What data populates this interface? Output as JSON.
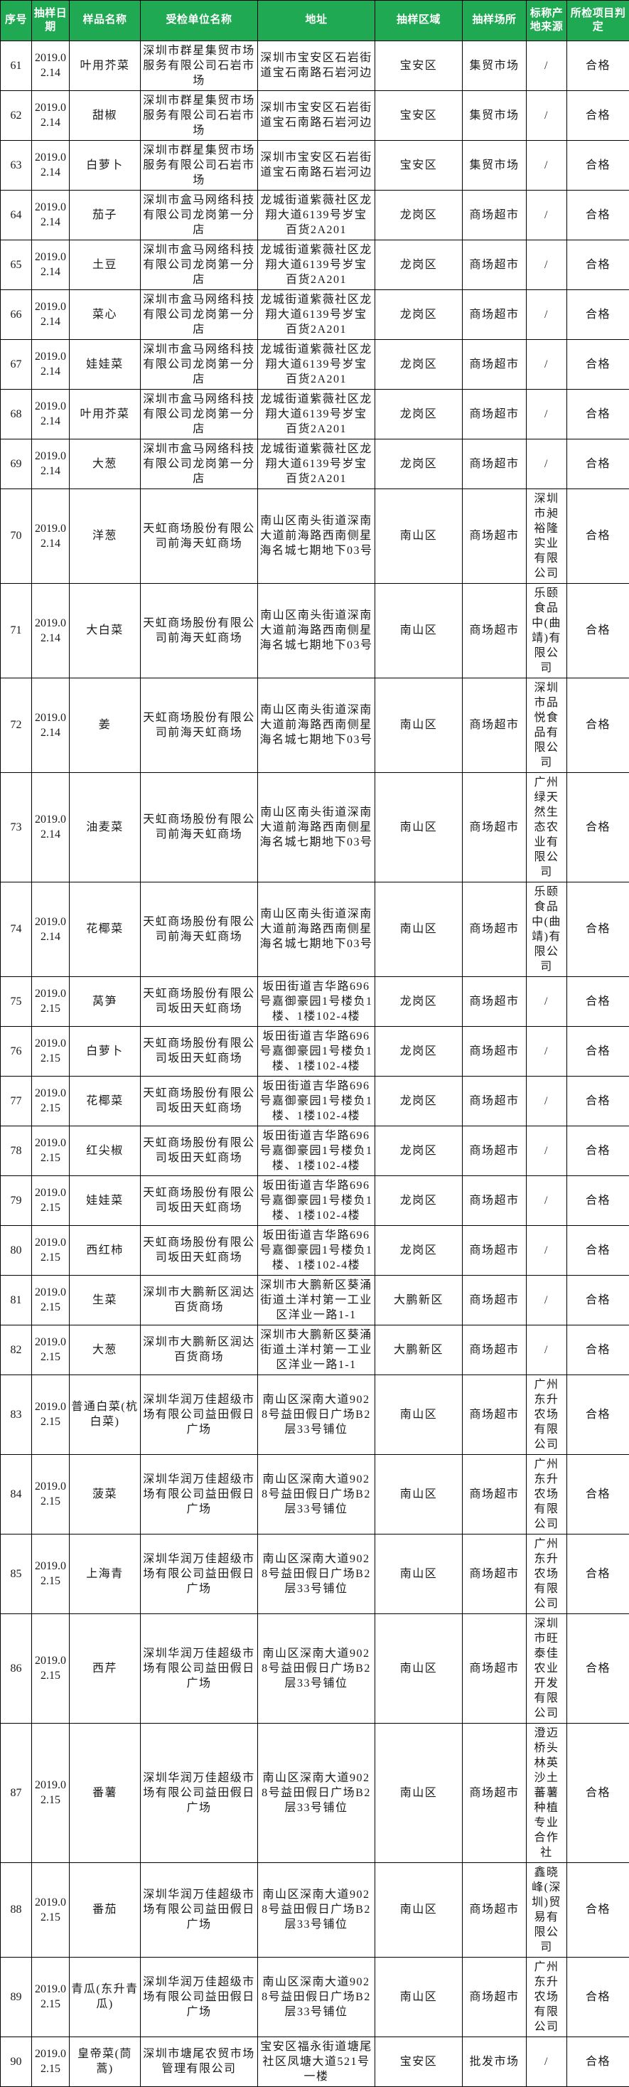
{
  "colors": {
    "header_bg": "#1EA952",
    "header_text": "#FFFFFF",
    "border": "#000000",
    "body_text": "#1A1A1A"
  },
  "table": {
    "columns": [
      {
        "key": "no",
        "label": "序号",
        "width": 44
      },
      {
        "key": "date",
        "label": "抽样日期",
        "width": 53
      },
      {
        "key": "sample",
        "label": "样品名称",
        "width": 100
      },
      {
        "key": "unit",
        "label": "受检单位名称",
        "width": 165
      },
      {
        "key": "address",
        "label": "地址",
        "width": 165
      },
      {
        "key": "region",
        "label": "抽样区域",
        "width": 123
      },
      {
        "key": "place",
        "label": "抽样场所",
        "width": 90
      },
      {
        "key": "origin",
        "label": "标称产地来源",
        "width": 57
      },
      {
        "key": "result",
        "label": "所检项目判定",
        "width": 88
      }
    ],
    "rows": [
      {
        "no": "61",
        "date": "2019.02.14",
        "sample": "叶用芥菜",
        "unit": "深圳市群星集贸市场服务有限公司石岩市场",
        "address": "深圳市宝安区石岩街道宝石南路石岩河边",
        "region": "宝安区",
        "place": "集贸市场",
        "origin": "/",
        "result": "合格"
      },
      {
        "no": "62",
        "date": "2019.02.14",
        "sample": "甜椒",
        "unit": "深圳市群星集贸市场服务有限公司石岩市场",
        "address": "深圳市宝安区石岩街道宝石南路石岩河边",
        "region": "宝安区",
        "place": "集贸市场",
        "origin": "/",
        "result": "合格"
      },
      {
        "no": "63",
        "date": "2019.02.14",
        "sample": "白萝卜",
        "unit": "深圳市群星集贸市场服务有限公司石岩市场",
        "address": "深圳市宝安区石岩街道宝石南路石岩河边",
        "region": "宝安区",
        "place": "集贸市场",
        "origin": "/",
        "result": "合格"
      },
      {
        "no": "64",
        "date": "2019.02.14",
        "sample": "茄子",
        "unit": "深圳市盒马网络科技有限公司龙岗第一分店",
        "address": "龙城街道紫薇社区龙翔大道6139号岁宝百货2A201",
        "region": "龙岗区",
        "place": "商场超市",
        "origin": "/",
        "result": "合格"
      },
      {
        "no": "65",
        "date": "2019.02.14",
        "sample": "土豆",
        "unit": "深圳市盒马网络科技有限公司龙岗第一分店",
        "address": "龙城街道紫薇社区龙翔大道6139号岁宝百货2A201",
        "region": "龙岗区",
        "place": "商场超市",
        "origin": "/",
        "result": "合格"
      },
      {
        "no": "66",
        "date": "2019.02.14",
        "sample": "菜心",
        "unit": "深圳市盒马网络科技有限公司龙岗第一分店",
        "address": "龙城街道紫薇社区龙翔大道6139号岁宝百货2A201",
        "region": "龙岗区",
        "place": "商场超市",
        "origin": "/",
        "result": "合格"
      },
      {
        "no": "67",
        "date": "2019.02.14",
        "sample": "娃娃菜",
        "unit": "深圳市盒马网络科技有限公司龙岗第一分店",
        "address": "龙城街道紫薇社区龙翔大道6139号岁宝百货2A201",
        "region": "龙岗区",
        "place": "商场超市",
        "origin": "/",
        "result": "合格"
      },
      {
        "no": "68",
        "date": "2019.02.14",
        "sample": "叶用芥菜",
        "unit": "深圳市盒马网络科技有限公司龙岗第一分店",
        "address": "龙城街道紫薇社区龙翔大道6139号岁宝百货2A201",
        "region": "龙岗区",
        "place": "商场超市",
        "origin": "/",
        "result": "合格"
      },
      {
        "no": "69",
        "date": "2019.02.14",
        "sample": "大葱",
        "unit": "深圳市盒马网络科技有限公司龙岗第一分店",
        "address": "龙城街道紫薇社区龙翔大道6139号岁宝百货2A201",
        "region": "龙岗区",
        "place": "商场超市",
        "origin": "/",
        "result": "合格"
      },
      {
        "no": "70",
        "date": "2019.02.14",
        "sample": "洋葱",
        "unit": "天虹商场股份有限公司前海天虹商场",
        "address": "南山区南头街道深南大道前海路西南侧星海名城七期地下03号",
        "region": "南山区",
        "place": "商场超市",
        "origin": "深圳市昶裕隆实业有限公司",
        "result": "合格"
      },
      {
        "no": "71",
        "date": "2019.02.14",
        "sample": "大白菜",
        "unit": "天虹商场股份有限公司前海天虹商场",
        "address": "南山区南头街道深南大道前海路西南侧星海名城七期地下03号",
        "region": "南山区",
        "place": "商场超市",
        "origin": "乐颐食品中(曲靖)有限公司",
        "result": "合格"
      },
      {
        "no": "72",
        "date": "2019.02.14",
        "sample": "姜",
        "unit": "天虹商场股份有限公司前海天虹商场",
        "address": "南山区南头街道深南大道前海路西南侧星海名城七期地下03号",
        "region": "南山区",
        "place": "商场超市",
        "origin": "深圳市品悦食品有限公司",
        "result": "合格"
      },
      {
        "no": "73",
        "date": "2019.02.14",
        "sample": "油麦菜",
        "unit": "天虹商场股份有限公司前海天虹商场",
        "address": "南山区南头街道深南大道前海路西南侧星海名城七期地下03号",
        "region": "南山区",
        "place": "商场超市",
        "origin": "广州绿天然生态农业有限公司",
        "result": "合格"
      },
      {
        "no": "74",
        "date": "2019.02.14",
        "sample": "花椰菜",
        "unit": "天虹商场股份有限公司前海天虹商场",
        "address": "南山区南头街道深南大道前海路西南侧星海名城七期地下03号",
        "region": "南山区",
        "place": "商场超市",
        "origin": "乐颐食品中(曲靖)有限公司",
        "result": "合格"
      },
      {
        "no": "75",
        "date": "2019.02.15",
        "sample": "莴笋",
        "unit": "天虹商场股份有限公司坂田天虹商场",
        "address": "坂田街道吉华路696号嘉御豪园1号楼负1楼、1楼102-4楼",
        "region": "龙岗区",
        "place": "商场超市",
        "origin": "/",
        "result": "合格"
      },
      {
        "no": "76",
        "date": "2019.02.15",
        "sample": "白萝卜",
        "unit": "天虹商场股份有限公司坂田天虹商场",
        "address": "坂田街道吉华路696号嘉御豪园1号楼负1楼、1楼102-4楼",
        "region": "龙岗区",
        "place": "商场超市",
        "origin": "/",
        "result": "合格"
      },
      {
        "no": "77",
        "date": "2019.02.15",
        "sample": "花椰菜",
        "unit": "天虹商场股份有限公司坂田天虹商场",
        "address": "坂田街道吉华路696号嘉御豪园1号楼负1楼、1楼102-4楼",
        "region": "龙岗区",
        "place": "商场超市",
        "origin": "/",
        "result": "合格"
      },
      {
        "no": "78",
        "date": "2019.02.15",
        "sample": "红尖椒",
        "unit": "天虹商场股份有限公司坂田天虹商场",
        "address": "坂田街道吉华路696号嘉御豪园1号楼负1楼、1楼102-4楼",
        "region": "龙岗区",
        "place": "商场超市",
        "origin": "/",
        "result": "合格"
      },
      {
        "no": "79",
        "date": "2019.02.15",
        "sample": "娃娃菜",
        "unit": "天虹商场股份有限公司坂田天虹商场",
        "address": "坂田街道吉华路696号嘉御豪园1号楼负1楼、1楼102-4楼",
        "region": "龙岗区",
        "place": "商场超市",
        "origin": "/",
        "result": "合格"
      },
      {
        "no": "80",
        "date": "2019.02.15",
        "sample": "西红柿",
        "unit": "天虹商场股份有限公司坂田天虹商场",
        "address": "坂田街道吉华路696号嘉御豪园1号楼负1楼、1楼102-4楼",
        "region": "龙岗区",
        "place": "商场超市",
        "origin": "/",
        "result": "合格"
      },
      {
        "no": "81",
        "date": "2019.02.15",
        "sample": "生菜",
        "unit": "深圳市大鹏新区润达百货商场",
        "address": "深圳市大鹏新区葵涌街道土洋村第一工业区洋业一路1-1",
        "region": "大鹏新区",
        "place": "商场超市",
        "origin": "/",
        "result": "合格"
      },
      {
        "no": "82",
        "date": "2019.02.15",
        "sample": "大葱",
        "unit": "深圳市大鹏新区润达百货商场",
        "address": "深圳市大鹏新区葵涌街道土洋村第一工业区洋业一路1-1",
        "region": "大鹏新区",
        "place": "商场超市",
        "origin": "/",
        "result": "合格"
      },
      {
        "no": "83",
        "date": "2019.02.15",
        "sample": "普通白菜(杭白菜)",
        "unit": "深圳华润万佳超级市场有限公司益田假日广场",
        "address": "南山区深南大道9028号益田假日广场B2层33号铺位",
        "region": "南山区",
        "place": "商场超市",
        "origin": "广州东升农场有限公司",
        "result": "合格"
      },
      {
        "no": "84",
        "date": "2019.02.15",
        "sample": "菠菜",
        "unit": "深圳华润万佳超级市场有限公司益田假日广场",
        "address": "南山区深南大道9028号益田假日广场B2层33号铺位",
        "region": "南山区",
        "place": "商场超市",
        "origin": "广州东升农场有限公司",
        "result": "合格"
      },
      {
        "no": "85",
        "date": "2019.02.15",
        "sample": "上海青",
        "unit": "深圳华润万佳超级市场有限公司益田假日广场",
        "address": "南山区深南大道9028号益田假日广场B2层33号铺位",
        "region": "南山区",
        "place": "商场超市",
        "origin": "广州东升农场有限公司",
        "result": "合格"
      },
      {
        "no": "86",
        "date": "2019.02.15",
        "sample": "西芹",
        "unit": "深圳华润万佳超级市场有限公司益田假日广场",
        "address": "南山区深南大道9028号益田假日广场B2层33号铺位",
        "region": "南山区",
        "place": "商场超市",
        "origin": "深圳市旺泰佳农业开发有限公司",
        "result": "合格"
      },
      {
        "no": "87",
        "date": "2019.02.15",
        "sample": "番薯",
        "unit": "深圳华润万佳超级市场有限公司益田假日广场",
        "address": "南山区深南大道9028号益田假日广场B2层33号铺位",
        "region": "南山区",
        "place": "商场超市",
        "origin": "澄迈桥头林英沙土蕃薯种植专业合作社",
        "result": "合格"
      },
      {
        "no": "88",
        "date": "2019.02.15",
        "sample": "番茄",
        "unit": "深圳华润万佳超级市场有限公司益田假日广场",
        "address": "南山区深南大道9028号益田假日广场B2层33号铺位",
        "region": "南山区",
        "place": "商场超市",
        "origin": "鑫晓峰(深圳)贸易有限公司",
        "result": "合格"
      },
      {
        "no": "89",
        "date": "2019.02.15",
        "sample": "青瓜(东升青瓜)",
        "unit": "深圳华润万佳超级市场有限公司益田假日广场",
        "address": "南山区深南大道9028号益田假日广场B2层33号铺位",
        "region": "南山区",
        "place": "商场超市",
        "origin": "广州东升农场有限公司",
        "result": "合格"
      },
      {
        "no": "90",
        "date": "2019.02.15",
        "sample": "皇帝菜(茼蒿)",
        "unit": "深圳市塘尾农贸市场管理有限公司",
        "address": "宝安区福永街道塘尾社区凤塘大道521号一楼",
        "region": "宝安区",
        "place": "批发市场",
        "origin": "/",
        "result": "合格"
      }
    ]
  }
}
